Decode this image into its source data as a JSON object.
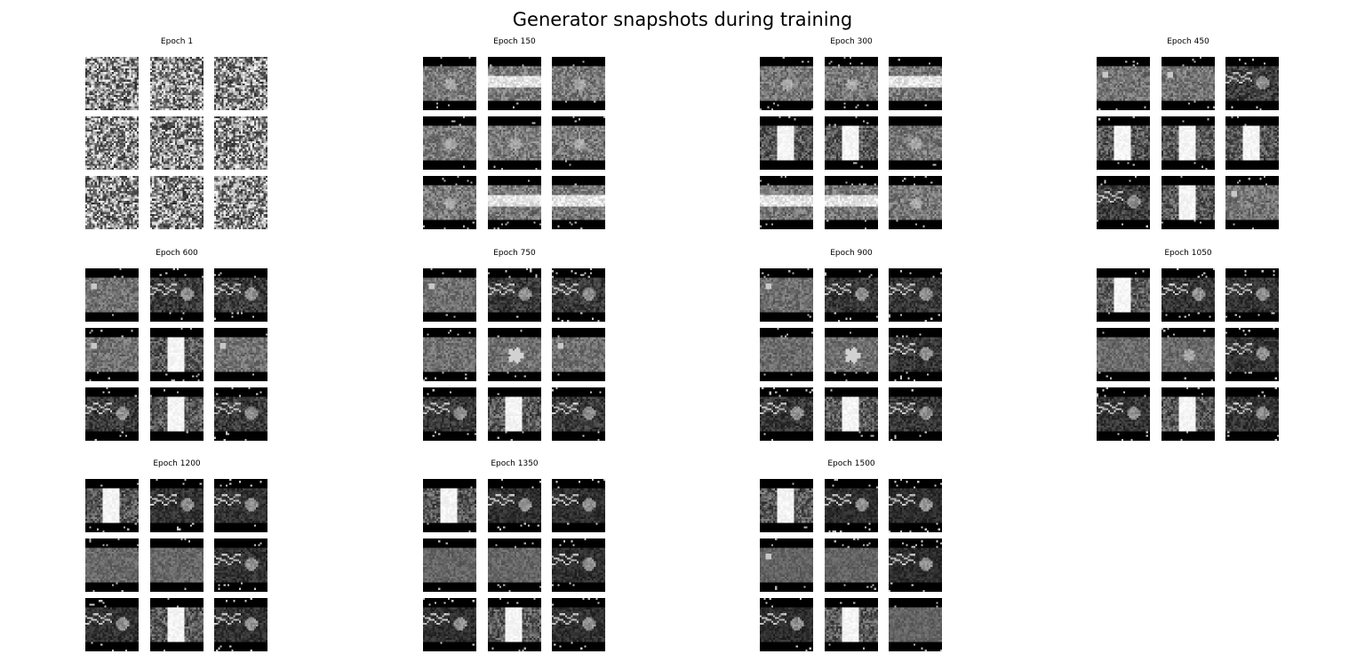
{
  "figure": {
    "title": "Generator snapshots during training",
    "colormap": "grayscale",
    "image_resolution": 28,
    "panels": [
      {
        "label": "Epoch 1",
        "samples": [
          "noise",
          "noise",
          "noise",
          "noise",
          "noise",
          "noise",
          "noise",
          "noise",
          "noise"
        ]
      },
      {
        "label": "Epoch 150",
        "samples": [
          "blob",
          "hbar",
          "blob",
          "blob",
          "blob",
          "blob",
          "blob",
          "hbar",
          "hbar"
        ]
      },
      {
        "label": "Epoch 300",
        "samples": [
          "blob",
          "blob",
          "hbar",
          "vbar",
          "vbar",
          "blob",
          "hbar",
          "hbar",
          "blob"
        ]
      },
      {
        "label": "Epoch 450",
        "samples": [
          "dot",
          "dot",
          "wave",
          "vbar",
          "vbar",
          "vbar",
          "wave",
          "vbar",
          "dot"
        ]
      },
      {
        "label": "Epoch 600",
        "samples": [
          "dot",
          "wave",
          "wave",
          "dot",
          "vbar",
          "dot",
          "wave",
          "vbar",
          "wave"
        ]
      },
      {
        "label": "Epoch 750",
        "samples": [
          "dot",
          "wave",
          "wave",
          "blank",
          "star",
          "dot",
          "wave",
          "vbar",
          "wave"
        ]
      },
      {
        "label": "Epoch 900",
        "samples": [
          "dot",
          "wave",
          "wave",
          "blank",
          "star",
          "wave",
          "wave",
          "vbar",
          "wave"
        ]
      },
      {
        "label": "Epoch 1050",
        "samples": [
          "vbar",
          "wave",
          "wave",
          "blank",
          "blob",
          "wave",
          "wave",
          "vbar",
          "wave"
        ]
      },
      {
        "label": "Epoch 1200",
        "samples": [
          "vbar",
          "wave",
          "wave",
          "blank",
          "blank",
          "wave",
          "wave",
          "vbar",
          "wave"
        ]
      },
      {
        "label": "Epoch 1350",
        "samples": [
          "vbar",
          "wave",
          "wave",
          "blank",
          "blank",
          "wave",
          "wave",
          "vbar",
          "wave"
        ]
      },
      {
        "label": "Epoch 1500",
        "samples": [
          "vbar",
          "wave",
          "wave",
          "dot",
          "blank",
          "wave",
          "wave",
          "vbar",
          "blank"
        ]
      }
    ]
  }
}
